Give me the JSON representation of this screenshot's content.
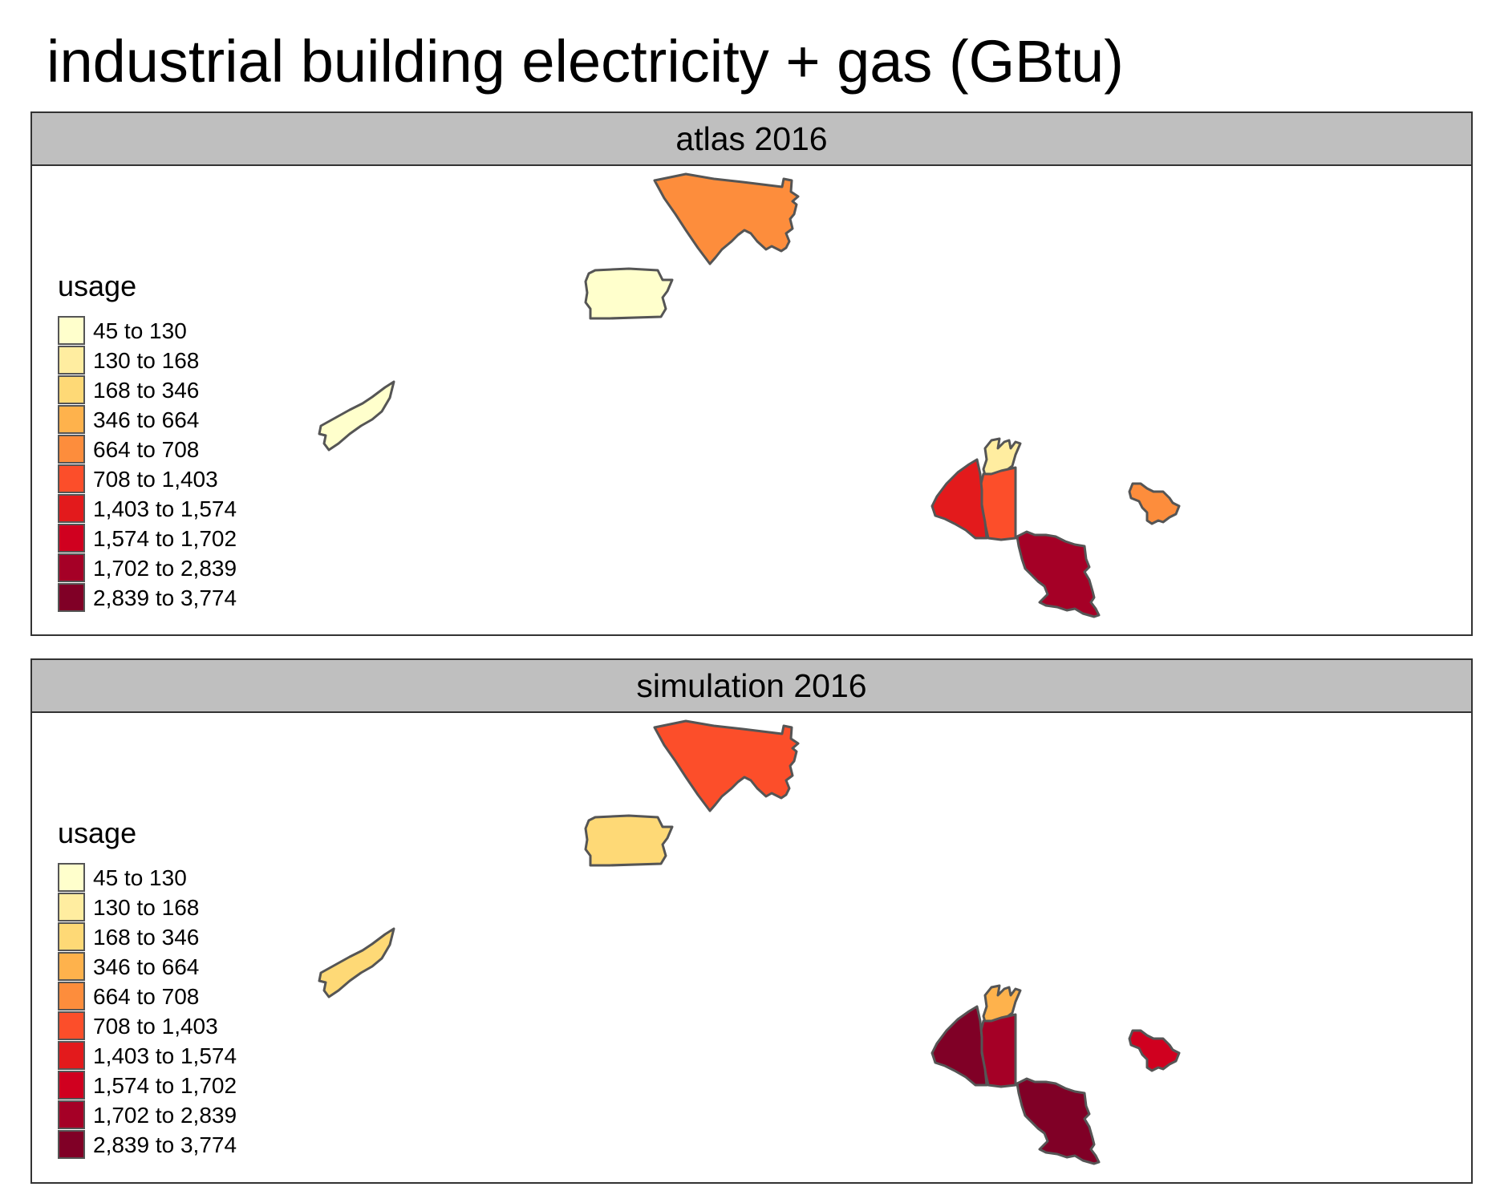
{
  "title": "industrial building electricity + gas (GBtu)",
  "legend": {
    "title": "usage",
    "classes": [
      {
        "label": "45 to 130",
        "color": "#FFFFCC"
      },
      {
        "label": "130 to 168",
        "color": "#FFEDA0"
      },
      {
        "label": "168 to 346",
        "color": "#FED976"
      },
      {
        "label": "346 to 664",
        "color": "#FEB24C"
      },
      {
        "label": "664 to 708",
        "color": "#FD8D3C"
      },
      {
        "label": "708 to 1,403",
        "color": "#FC4E2A"
      },
      {
        "label": "1,403 to 1,574",
        "color": "#E31A1C"
      },
      {
        "label": "1,574 to 1,702",
        "color": "#D0001F"
      },
      {
        "label": "1,702 to 2,839",
        "color": "#A50026"
      },
      {
        "label": "2,839 to 3,774",
        "color": "#800026"
      }
    ]
  },
  "panels": [
    {
      "label": "atlas 2016",
      "region_class": {
        "north": 4,
        "middle_square": 0,
        "west_strip": 0,
        "east_small": 4,
        "top_small": 1,
        "center": 5,
        "west_large": 6,
        "southeast": 8
      }
    },
    {
      "label": "simulation 2016",
      "region_class": {
        "north": 5,
        "middle_square": 2,
        "west_strip": 2,
        "east_small": 7,
        "top_small": 3,
        "center": 8,
        "west_large": 9,
        "southeast": 9
      }
    }
  ]
}
